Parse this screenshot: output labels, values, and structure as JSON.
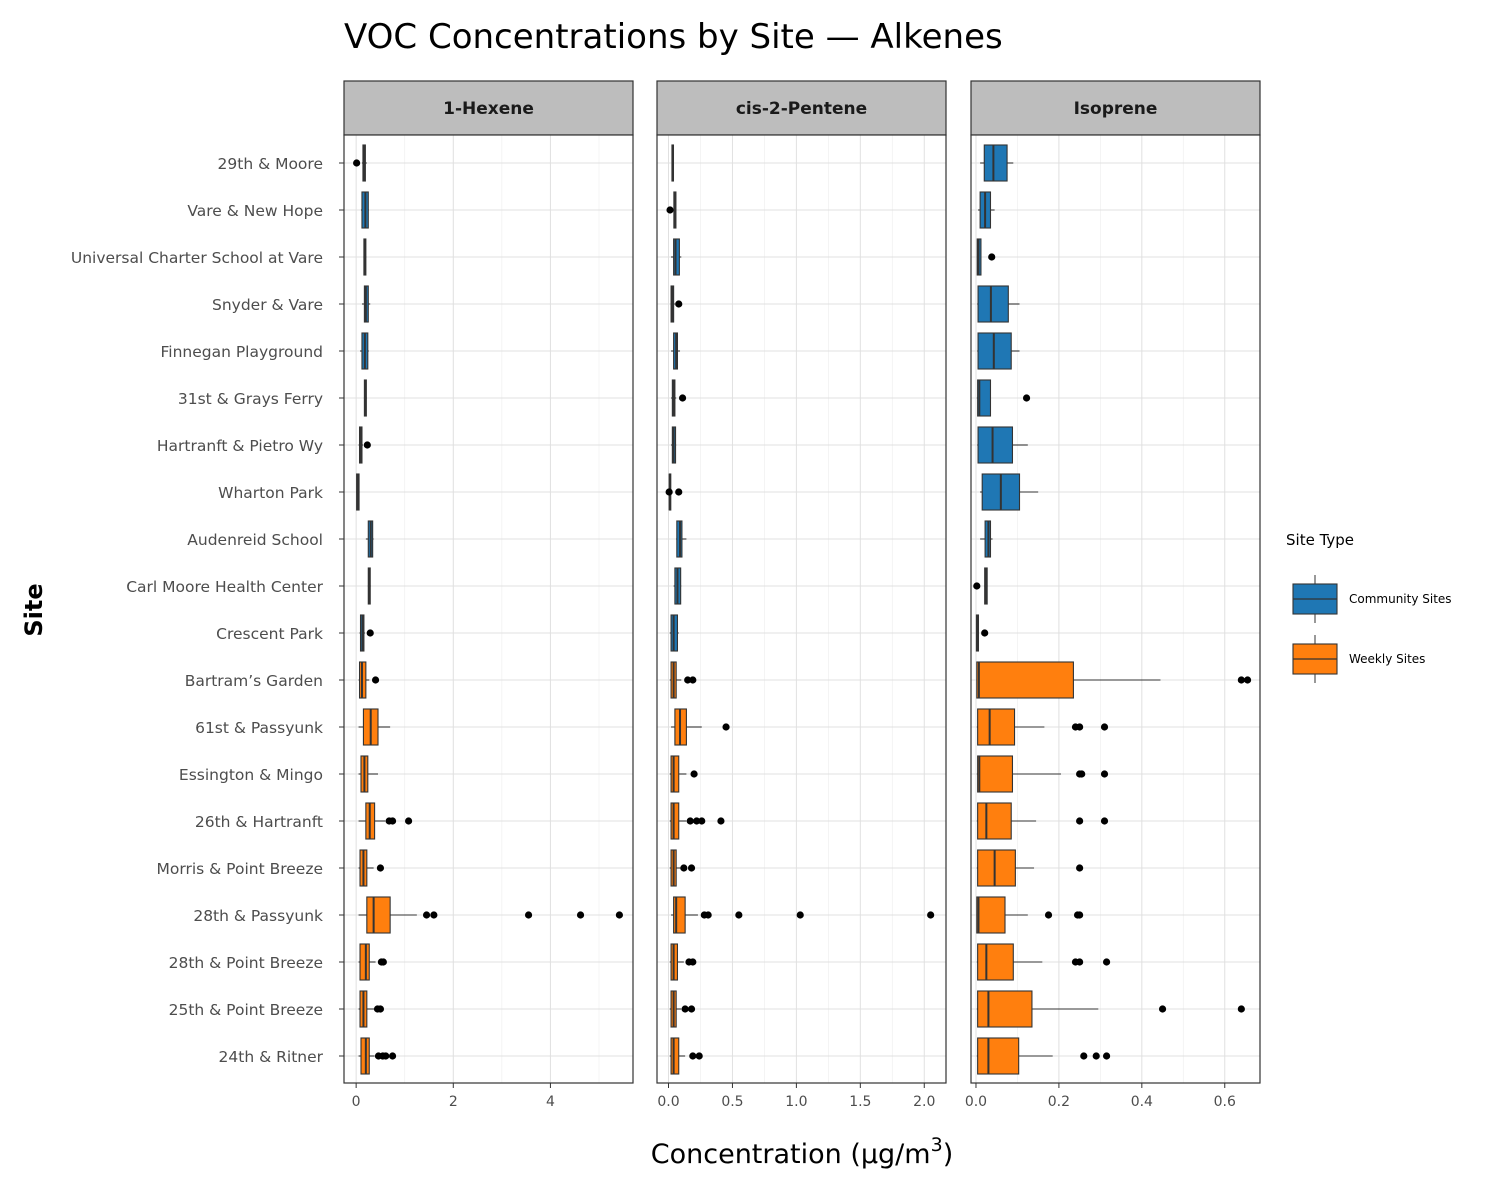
{
  "chart_data": {
    "type": "boxplot",
    "title": "VOC Concentrations by Site — Alkenes",
    "xlabel": "Concentration (μg/m",
    "xlabel_superscript": "3",
    "xlabel_suffix": ")",
    "ylabel": "Site",
    "orientation": "horizontal",
    "facet_by": "compound",
    "grid": true,
    "legend": {
      "title": "Site Type",
      "position": "right",
      "entries": [
        {
          "label": "Community Sites",
          "color": "#1f77b4"
        },
        {
          "label": "Weekly Sites",
          "color": "#ff7f0e"
        }
      ]
    },
    "sites": [
      "29th & Moore",
      "Vare & New Hope",
      "Universal Charter School at Vare",
      "Snyder & Vare",
      "Finnegan Playground",
      "31st & Grays Ferry",
      "Hartranft & Pietro Wy",
      "Wharton Park",
      "Audenreid School",
      "Carl Moore Health Center",
      "Crescent Park",
      "Bartram’s Garden",
      "61st & Passyunk",
      "Essington & Mingo",
      "26th & Hartranft",
      "Morris & Point Breeze",
      "28th & Passyunk",
      "28th & Point Breeze",
      "25th & Point Breeze",
      "24th & Ritner"
    ],
    "site_types": [
      "Community Sites",
      "Community Sites",
      "Community Sites",
      "Community Sites",
      "Community Sites",
      "Community Sites",
      "Community Sites",
      "Community Sites",
      "Community Sites",
      "Community Sites",
      "Community Sites",
      "Weekly Sites",
      "Weekly Sites",
      "Weekly Sites",
      "Weekly Sites",
      "Weekly Sites",
      "Weekly Sites",
      "Weekly Sites",
      "Weekly Sites",
      "Weekly Sites"
    ],
    "panels": [
      {
        "name": "1-Hexene",
        "xlim": [
          -0.25,
          5.7
        ],
        "xticks": [
          0,
          2,
          4
        ],
        "xtick_labels": [
          "0",
          "2",
          "4"
        ],
        "boxes": [
          {
            "min": 0.12,
            "q1": 0.14,
            "median": 0.17,
            "q3": 0.19,
            "max": 0.22,
            "outliers": [
              0.01
            ]
          },
          {
            "min": 0.1,
            "q1": 0.12,
            "median": 0.19,
            "q3": 0.25,
            "max": 0.26,
            "outliers": []
          },
          {
            "min": 0.15,
            "q1": 0.16,
            "median": 0.18,
            "q3": 0.2,
            "max": 0.21,
            "outliers": []
          },
          {
            "min": 0.12,
            "q1": 0.17,
            "median": 0.2,
            "q3": 0.25,
            "max": 0.29,
            "outliers": []
          },
          {
            "min": 0.08,
            "q1": 0.12,
            "median": 0.18,
            "q3": 0.24,
            "max": 0.26,
            "outliers": []
          },
          {
            "min": 0.16,
            "q1": 0.17,
            "median": 0.19,
            "q3": 0.21,
            "max": 0.22,
            "outliers": []
          },
          {
            "min": 0.05,
            "q1": 0.07,
            "median": 0.1,
            "q3": 0.12,
            "max": 0.14,
            "outliers": [
              0.23
            ]
          },
          {
            "min": 0.0,
            "q1": 0.01,
            "median": 0.03,
            "q3": 0.06,
            "max": 0.07,
            "outliers": []
          },
          {
            "min": 0.2,
            "q1": 0.25,
            "median": 0.3,
            "q3": 0.34,
            "max": 0.36,
            "outliers": []
          },
          {
            "min": 0.24,
            "q1": 0.25,
            "median": 0.27,
            "q3": 0.29,
            "max": 0.3,
            "outliers": []
          },
          {
            "min": 0.07,
            "q1": 0.09,
            "median": 0.13,
            "q3": 0.16,
            "max": 0.18,
            "outliers": [
              0.29
            ]
          },
          {
            "min": 0.05,
            "q1": 0.07,
            "median": 0.12,
            "q3": 0.2,
            "max": 0.27,
            "outliers": [
              0.4
            ]
          },
          {
            "min": 0.05,
            "q1": 0.15,
            "median": 0.3,
            "q3": 0.45,
            "max": 0.7,
            "outliers": []
          },
          {
            "min": 0.05,
            "q1": 0.1,
            "median": 0.17,
            "q3": 0.24,
            "max": 0.45,
            "outliers": []
          },
          {
            "min": 0.05,
            "q1": 0.2,
            "median": 0.28,
            "q3": 0.38,
            "max": 0.6,
            "outliers": [
              0.68,
              0.75,
              1.08
            ]
          },
          {
            "min": 0.05,
            "q1": 0.08,
            "median": 0.15,
            "q3": 0.22,
            "max": 0.36,
            "outliers": [
              0.5
            ]
          },
          {
            "min": 0.05,
            "q1": 0.22,
            "median": 0.36,
            "q3": 0.7,
            "max": 1.25,
            "outliers": [
              1.45,
              1.6,
              3.55,
              4.62,
              5.42
            ]
          },
          {
            "min": 0.05,
            "q1": 0.08,
            "median": 0.2,
            "q3": 0.27,
            "max": 0.4,
            "outliers": [
              0.52,
              0.56
            ]
          },
          {
            "min": 0.05,
            "q1": 0.08,
            "median": 0.15,
            "q3": 0.22,
            "max": 0.38,
            "outliers": [
              0.44,
              0.5
            ]
          },
          {
            "min": 0.05,
            "q1": 0.1,
            "median": 0.2,
            "q3": 0.27,
            "max": 0.38,
            "outliers": [
              0.46,
              0.55,
              0.61,
              0.75
            ]
          }
        ]
      },
      {
        "name": "cis-2-Pentene",
        "xlim": [
          -0.09,
          2.17
        ],
        "xticks": [
          0.0,
          0.5,
          1.0,
          1.5,
          2.0
        ],
        "xtick_labels": [
          "0.0",
          "0.5",
          "1.0",
          "1.5",
          "2.0"
        ],
        "boxes": [
          {
            "min": 0.025,
            "q1": 0.027,
            "median": 0.032,
            "q3": 0.037,
            "max": 0.04,
            "outliers": []
          },
          {
            "min": 0.04,
            "q1": 0.042,
            "median": 0.05,
            "q3": 0.058,
            "max": 0.06,
            "outliers": [
              0.012
            ]
          },
          {
            "min": 0.02,
            "q1": 0.04,
            "median": 0.055,
            "q3": 0.085,
            "max": 0.1,
            "outliers": []
          },
          {
            "min": 0.015,
            "q1": 0.02,
            "median": 0.03,
            "q3": 0.04,
            "max": 0.05,
            "outliers": [
              0.08
            ]
          },
          {
            "min": 0.02,
            "q1": 0.04,
            "median": 0.06,
            "q3": 0.07,
            "max": 0.09,
            "outliers": []
          },
          {
            "min": 0.02,
            "q1": 0.03,
            "median": 0.04,
            "q3": 0.05,
            "max": 0.06,
            "outliers": [
              0.11
            ]
          },
          {
            "min": 0.02,
            "q1": 0.03,
            "median": 0.04,
            "q3": 0.055,
            "max": 0.06,
            "outliers": []
          },
          {
            "min": 0.005,
            "q1": 0.006,
            "median": 0.01,
            "q3": 0.016,
            "max": 0.02,
            "outliers": [
              0.005,
              0.08
            ]
          },
          {
            "min": 0.06,
            "q1": 0.065,
            "median": 0.09,
            "q3": 0.105,
            "max": 0.14,
            "outliers": []
          },
          {
            "min": 0.04,
            "q1": 0.05,
            "median": 0.07,
            "q3": 0.095,
            "max": 0.1,
            "outliers": []
          },
          {
            "min": 0.01,
            "q1": 0.02,
            "median": 0.04,
            "q3": 0.07,
            "max": 0.08,
            "outliers": []
          },
          {
            "min": 0.01,
            "q1": 0.02,
            "median": 0.04,
            "q3": 0.06,
            "max": 0.1,
            "outliers": [
              0.15,
              0.19
            ]
          },
          {
            "min": 0.02,
            "q1": 0.05,
            "median": 0.09,
            "q3": 0.14,
            "max": 0.26,
            "outliers": [
              0.45
            ]
          },
          {
            "min": 0.01,
            "q1": 0.02,
            "median": 0.04,
            "q3": 0.08,
            "max": 0.14,
            "outliers": [
              0.2
            ]
          },
          {
            "min": 0.01,
            "q1": 0.02,
            "median": 0.04,
            "q3": 0.08,
            "max": 0.14,
            "outliers": [
              0.17,
              0.22,
              0.26,
              0.41
            ]
          },
          {
            "min": 0.01,
            "q1": 0.02,
            "median": 0.04,
            "q3": 0.06,
            "max": 0.1,
            "outliers": [
              0.12,
              0.18
            ]
          },
          {
            "min": 0.02,
            "q1": 0.04,
            "median": 0.06,
            "q3": 0.13,
            "max": 0.23,
            "outliers": [
              0.28,
              0.31,
              0.55,
              1.03,
              2.05
            ]
          },
          {
            "min": 0.01,
            "q1": 0.02,
            "median": 0.04,
            "q3": 0.07,
            "max": 0.12,
            "outliers": [
              0.16,
              0.19
            ]
          },
          {
            "min": 0.01,
            "q1": 0.02,
            "median": 0.04,
            "q3": 0.06,
            "max": 0.1,
            "outliers": [
              0.13,
              0.18
            ]
          },
          {
            "min": 0.01,
            "q1": 0.02,
            "median": 0.04,
            "q3": 0.08,
            "max": 0.13,
            "outliers": [
              0.19,
              0.24
            ]
          }
        ]
      },
      {
        "name": "Isoprene",
        "xlim": [
          -0.012,
          0.685
        ],
        "xticks": [
          0.0,
          0.2,
          0.4,
          0.6
        ],
        "xtick_labels": [
          "0.0",
          "0.2",
          "0.4",
          "0.6"
        ],
        "boxes": [
          {
            "min": 0.01,
            "q1": 0.02,
            "median": 0.042,
            "q3": 0.075,
            "max": 0.09,
            "outliers": []
          },
          {
            "min": 0.005,
            "q1": 0.01,
            "median": 0.022,
            "q3": 0.035,
            "max": 0.045,
            "outliers": []
          },
          {
            "min": 0.002,
            "q1": 0.003,
            "median": 0.006,
            "q3": 0.012,
            "max": 0.013,
            "outliers": [
              0.038
            ]
          },
          {
            "min": 0.003,
            "q1": 0.005,
            "median": 0.036,
            "q3": 0.078,
            "max": 0.105,
            "outliers": []
          },
          {
            "min": 0.003,
            "q1": 0.005,
            "median": 0.043,
            "q3": 0.085,
            "max": 0.105,
            "outliers": []
          },
          {
            "min": 0.002,
            "q1": 0.004,
            "median": 0.008,
            "q3": 0.035,
            "max": 0.036,
            "outliers": [
              0.122
            ]
          },
          {
            "min": 0.003,
            "q1": 0.005,
            "median": 0.04,
            "q3": 0.088,
            "max": 0.125,
            "outliers": []
          },
          {
            "min": 0.01,
            "q1": 0.015,
            "median": 0.06,
            "q3": 0.105,
            "max": 0.15,
            "outliers": []
          },
          {
            "min": 0.01,
            "q1": 0.022,
            "median": 0.03,
            "q3": 0.035,
            "max": 0.04,
            "outliers": []
          },
          {
            "min": 0.02,
            "q1": 0.021,
            "median": 0.024,
            "q3": 0.027,
            "max": 0.028,
            "outliers": [
              0.002
            ]
          },
          {
            "min": 0.001,
            "q1": 0.001,
            "median": 0.003,
            "q3": 0.006,
            "max": 0.007,
            "outliers": [
              0.021
            ]
          },
          {
            "min": 0.001,
            "q1": 0.002,
            "median": 0.007,
            "q3": 0.235,
            "max": 0.445,
            "outliers": [
              0.64,
              0.655
            ]
          },
          {
            "min": 0.002,
            "q1": 0.004,
            "median": 0.033,
            "q3": 0.093,
            "max": 0.165,
            "outliers": [
              0.24,
              0.25,
              0.31
            ]
          },
          {
            "min": 0.002,
            "q1": 0.004,
            "median": 0.008,
            "q3": 0.088,
            "max": 0.205,
            "outliers": [
              0.25,
              0.255,
              0.31
            ]
          },
          {
            "min": 0.002,
            "q1": 0.004,
            "median": 0.025,
            "q3": 0.085,
            "max": 0.145,
            "outliers": [
              0.25,
              0.31
            ]
          },
          {
            "min": 0.002,
            "q1": 0.004,
            "median": 0.045,
            "q3": 0.095,
            "max": 0.14,
            "outliers": [
              0.25
            ]
          },
          {
            "min": 0.001,
            "q1": 0.002,
            "median": 0.006,
            "q3": 0.07,
            "max": 0.125,
            "outliers": [
              0.175,
              0.245,
              0.25
            ]
          },
          {
            "min": 0.002,
            "q1": 0.004,
            "median": 0.025,
            "q3": 0.09,
            "max": 0.16,
            "outliers": [
              0.24,
              0.25,
              0.315
            ]
          },
          {
            "min": 0.002,
            "q1": 0.004,
            "median": 0.03,
            "q3": 0.135,
            "max": 0.295,
            "outliers": [
              0.45,
              0.64
            ]
          },
          {
            "min": 0.002,
            "q1": 0.004,
            "median": 0.03,
            "q3": 0.103,
            "max": 0.185,
            "outliers": [
              0.26,
              0.29,
              0.315
            ]
          }
        ]
      }
    ]
  }
}
